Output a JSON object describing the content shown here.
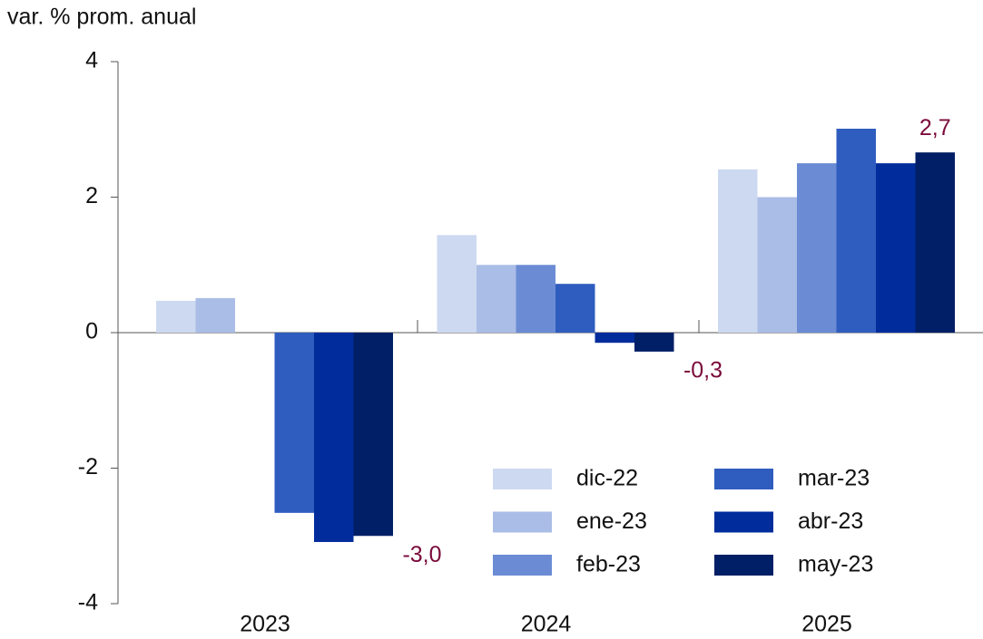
{
  "chart_data": {
    "type": "bar",
    "y_label": "var. % prom. anual",
    "categories": [
      "2023",
      "2024",
      "2025"
    ],
    "series": [
      {
        "name": "dic-22",
        "color": "#cdd9f0",
        "values": [
          0.47,
          1.44,
          2.41
        ]
      },
      {
        "name": "ene-23",
        "color": "#aabde6",
        "values": [
          0.51,
          1.0,
          2.0
        ]
      },
      {
        "name": "feb-23",
        "color": "#6b8cd4",
        "values": [
          null,
          1.0,
          2.5
        ]
      },
      {
        "name": "mar-23",
        "color": "#2f5dbf",
        "values": [
          -2.66,
          0.72,
          3.01
        ]
      },
      {
        "name": "abr-23",
        "color": "#002c9c",
        "values": [
          -3.09,
          -0.15,
          2.5
        ]
      },
      {
        "name": "may-23",
        "color": "#001f66",
        "values": [
          -3.0,
          -0.28,
          2.66
        ],
        "value_labels": [
          "-3,0",
          "-0,3",
          "2,7"
        ]
      }
    ],
    "ylim": [
      -4,
      4
    ],
    "yticks": [
      -4,
      -2,
      0,
      2,
      4
    ],
    "legend": "lower right"
  }
}
